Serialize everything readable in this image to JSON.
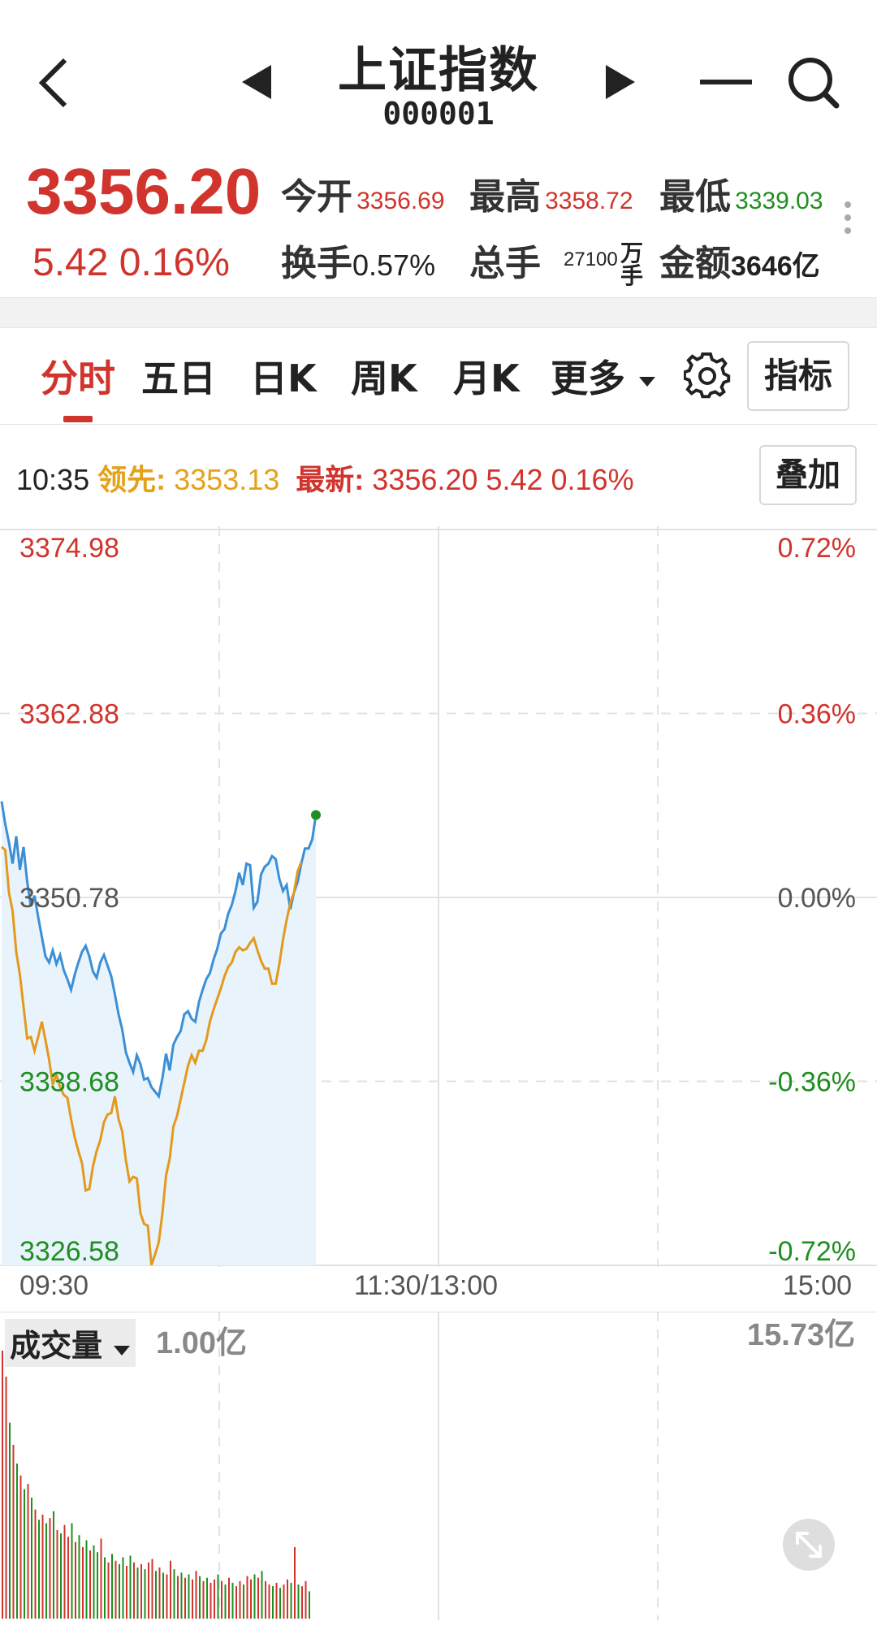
{
  "header": {
    "title": "上证指数",
    "code": "000001"
  },
  "quote": {
    "price": "3356.20",
    "change": "5.42",
    "change_pct": "0.16%",
    "open_label": "今开",
    "open": "3356.69",
    "high_label": "最高",
    "high": "3358.72",
    "low_label": "最低",
    "low": "3339.03",
    "turnover_label": "换手",
    "turnover": "0.57%",
    "volume_label": "总手",
    "volume": "27100",
    "volume_unit": "万",
    "volume_unit2": "手",
    "amount_label": "金额",
    "amount": "3646亿",
    "colors": {
      "up": "#d0342c",
      "down": "#1f8f1f"
    }
  },
  "tabs": [
    {
      "label": "分时",
      "active": true
    },
    {
      "label": "五日"
    },
    {
      "label": "日K"
    },
    {
      "label": "周K"
    },
    {
      "label": "月K"
    },
    {
      "label": "更多"
    }
  ],
  "indicator_button": "指标",
  "info_line": {
    "time": "10:35",
    "lead_label": "领先:",
    "lead_value": "3353.13",
    "latest_label": "最新:",
    "latest_value": "3356.20 5.42 0.16%"
  },
  "overlay_button": "叠加",
  "chart_data": [
    {
      "type": "line",
      "y_axis_left": [
        "3374.98",
        "3362.88",
        "3350.78",
        "3338.68",
        "3326.58"
      ],
      "y_axis_right": [
        "0.72%",
        "0.36%",
        "0.00%",
        "-0.36%",
        "-0.72%"
      ],
      "x_axis": [
        "09:30",
        "11:30/13:00",
        "15:00"
      ],
      "ylim": [
        3326.58,
        3374.98
      ],
      "series": [
        {
          "color": "#3b8fd6",
          "values": [
            3357.1,
            3355.6,
            3354.4,
            3353.0,
            3354.8,
            3352.6,
            3354.1,
            3351.8,
            3350.2,
            3350.9,
            3349.5,
            3348.2,
            3346.9,
            3346.5,
            3347.3,
            3346.4,
            3347.0,
            3346.0,
            3345.4,
            3344.7,
            3345.7,
            3346.5,
            3347.2,
            3347.6,
            3346.9,
            3345.9,
            3345.5,
            3346.5,
            3347.0,
            3346.3,
            3345.6,
            3344.4,
            3343.1,
            3342.1,
            3340.6,
            3339.9,
            3339.3,
            3340.4,
            3339.8,
            3338.8,
            3338.9,
            3338.3,
            3338.0,
            3337.7,
            3338.9,
            3340.5,
            3339.4,
            3341.1,
            3341.6,
            3342.0,
            3343.1,
            3343.3,
            3342.8,
            3342.6,
            3343.9,
            3344.7,
            3345.4,
            3345.8,
            3346.7,
            3347.4,
            3348.4,
            3348.7,
            3349.7,
            3350.3,
            3351.2,
            3352.4,
            3351.6,
            3353.0,
            3352.9,
            3350.1,
            3350.5,
            3352.3,
            3352.8,
            3353.0,
            3353.5,
            3353.3,
            3352.0,
            3351.2,
            3351.6,
            3350.0,
            3351.1,
            3351.8,
            3353.0,
            3354.0,
            3354.0,
            3354.6,
            3356.2
          ]
        },
        {
          "color": "#e39a1c",
          "values": [
            3354.1,
            3353.9,
            3351.1,
            3349.9,
            3347.2,
            3345.7,
            3343.6,
            3341.5,
            3341.6,
            3340.7,
            3341.6,
            3342.6,
            3341.4,
            3340.1,
            3338.5,
            3339.1,
            3338.3,
            3337.8,
            3337.6,
            3336.2,
            3335.0,
            3334.1,
            3333.3,
            3331.5,
            3331.6,
            3333.1,
            3334.1,
            3334.8,
            3336.0,
            3336.5,
            3336.6,
            3337.7,
            3336.2,
            3335.4,
            3333.5,
            3332.1,
            3332.4,
            3332.3,
            3330.0,
            3329.3,
            3329.2,
            3326.6,
            3327.3,
            3328.1,
            3330.0,
            3332.5,
            3333.6,
            3335.7,
            3336.4,
            3337.5,
            3338.6,
            3339.7,
            3340.4,
            3339.9,
            3340.7,
            3340.7,
            3341.4,
            3342.6,
            3343.4,
            3344.1,
            3344.8,
            3345.6,
            3346.2,
            3346.5,
            3347.2,
            3347.5,
            3347.3,
            3347.4,
            3347.8,
            3348.1,
            3347.3,
            3346.6,
            3346.1,
            3346.1,
            3345.1,
            3345.1,
            3346.4,
            3348.0,
            3349.3,
            3350.4,
            3351.1,
            3352.5,
            3353.1
          ]
        }
      ]
    },
    {
      "type": "bar",
      "title": "成交量",
      "scale": "1.00亿",
      "max_label": "15.73亿",
      "colors": {
        "up": "#d0342c",
        "down": "#1f8f1f"
      },
      "values": [
        15.73,
        14.2,
        11.5,
        10.2,
        9.1,
        8.4,
        7.6,
        7.9,
        7.1,
        6.4,
        5.8,
        6.1,
        5.6,
        5.9,
        6.3,
        5.2,
        5.0,
        5.5,
        4.8,
        5.6,
        4.5,
        4.9,
        4.2,
        4.6,
        4.0,
        4.3,
        3.9,
        4.7,
        3.6,
        3.3,
        3.8,
        3.4,
        3.2,
        3.6,
        3.1,
        3.7,
        3.3,
        3.0,
        3.2,
        2.9,
        3.3,
        3.5,
        2.8,
        3.0,
        2.7,
        2.6,
        3.4,
        2.9,
        2.5,
        2.7,
        2.4,
        2.6,
        2.3,
        2.8,
        2.5,
        2.2,
        2.4,
        2.1,
        2.3,
        2.6,
        2.2,
        2.0,
        2.4,
        2.1,
        1.9,
        2.2,
        2.0,
        2.5,
        2.3,
        2.6,
        2.4,
        2.8,
        2.2,
        2.0,
        1.9,
        2.1,
        1.8,
        2.0,
        2.3,
        2.1,
        4.2,
        2.0,
        1.9,
        2.2,
        1.6
      ],
      "up": [
        1,
        1,
        0,
        1,
        0,
        1,
        0,
        1,
        0,
        1,
        0,
        1,
        0,
        1,
        0,
        1,
        0,
        1,
        1,
        0,
        1,
        0,
        1,
        0,
        1,
        0,
        0,
        1,
        0,
        1,
        0,
        1,
        0,
        0,
        1,
        0,
        1,
        0,
        1,
        0,
        1,
        1,
        0,
        1,
        0,
        1,
        1,
        0,
        1,
        0,
        1,
        0,
        1,
        1,
        0,
        1,
        0,
        1,
        1,
        0,
        1,
        0,
        1,
        0,
        1,
        1,
        0,
        1,
        1,
        0,
        1,
        0,
        1,
        1,
        0,
        1,
        0,
        1,
        1,
        0,
        1,
        0,
        1,
        1,
        0
      ]
    }
  ]
}
